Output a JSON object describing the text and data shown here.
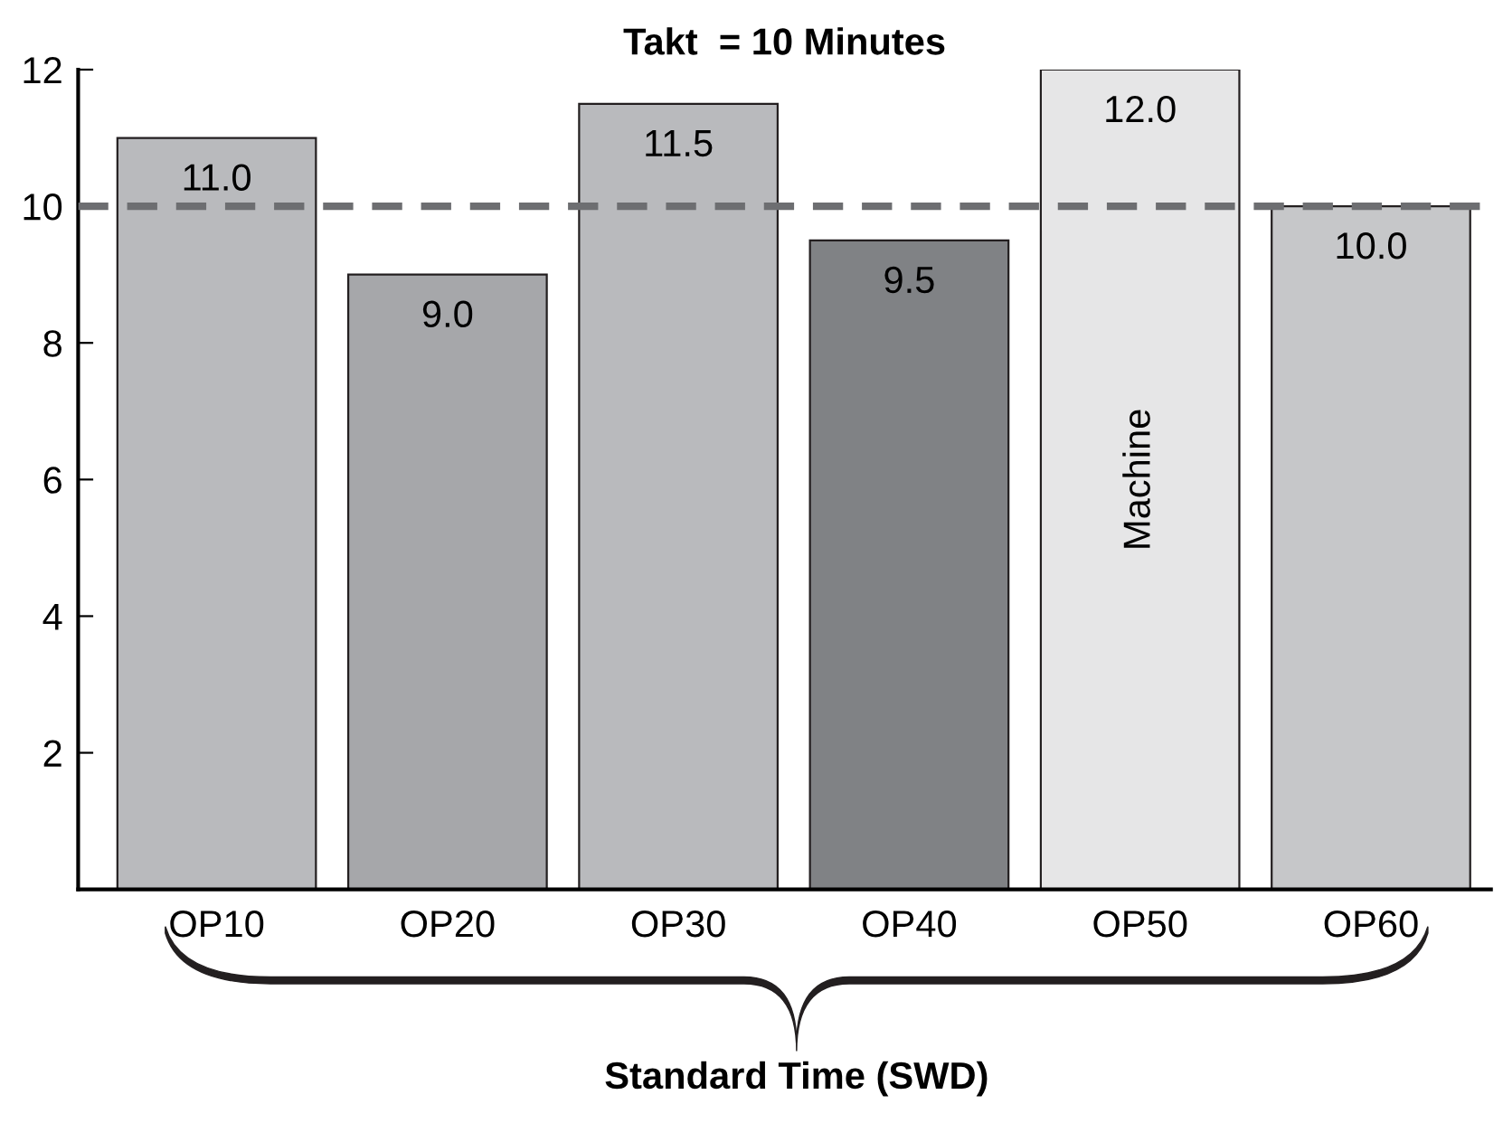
{
  "chart_data": {
    "type": "bar",
    "title": "Takt  = 10 Minutes",
    "xlabel": "Standard Time (SWD)",
    "categories": [
      "OP10",
      "OP20",
      "OP30",
      "OP40",
      "OP50",
      "OP60"
    ],
    "values": [
      11.0,
      9.0,
      11.5,
      9.5,
      12.0,
      10.0
    ],
    "colors": [
      "#b9babd",
      "#a6a7aa",
      "#b9babd",
      "#808285",
      "#e6e6e7",
      "#c6c7c9"
    ],
    "value_labels": [
      "11.0",
      "9.0",
      "11.5",
      "9.5",
      "12.0",
      "10.0"
    ],
    "ylim": [
      0,
      12
    ],
    "yticks": [
      2,
      4,
      6,
      8,
      10,
      12
    ],
    "ref_lines": [
      {
        "axis": "y",
        "value": 10,
        "color": "#6d6e71",
        "line_style": "dashed"
      }
    ],
    "annotations": [
      "Machine"
    ],
    "grid": false,
    "legend": false
  }
}
